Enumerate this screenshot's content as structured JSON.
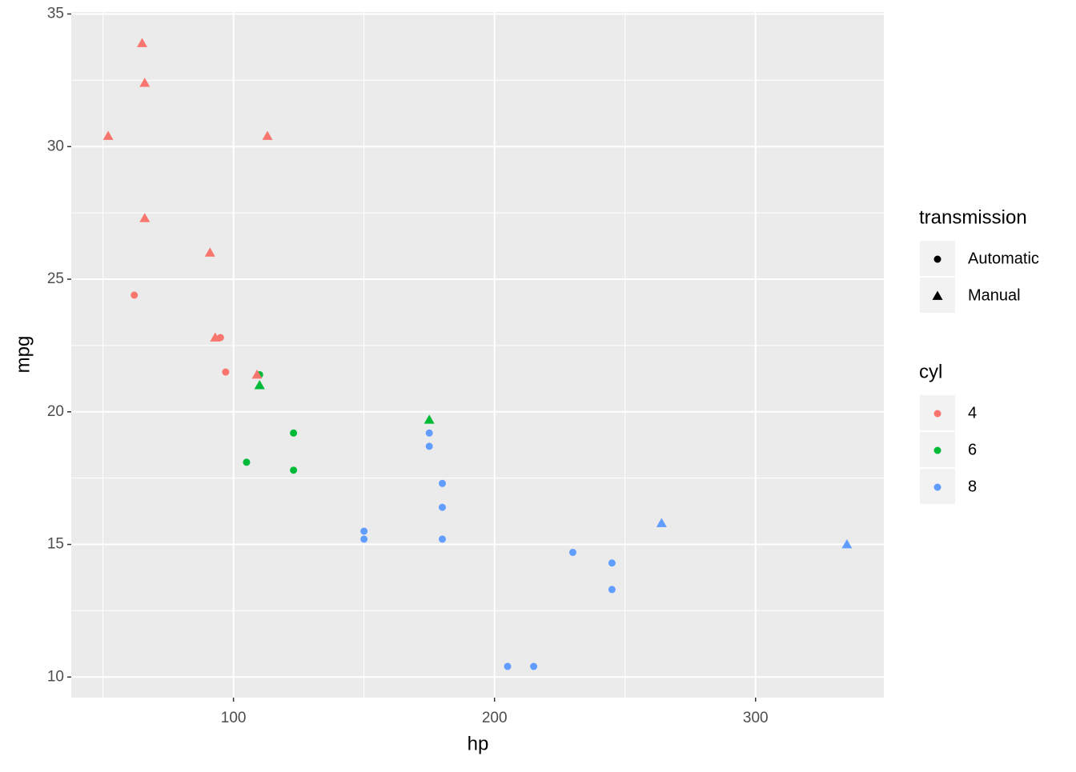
{
  "chart_data": {
    "type": "scatter",
    "x_label": "hp",
    "y_label": "mpg",
    "x": [
      110,
      110,
      93,
      110,
      175,
      105,
      245,
      62,
      95,
      123,
      123,
      180,
      180,
      180,
      205,
      215,
      230,
      66,
      52,
      65,
      97,
      150,
      150,
      245,
      175,
      66,
      91,
      113,
      264,
      175,
      335,
      109
    ],
    "y": [
      21,
      21,
      22.8,
      21.4,
      18.7,
      18.1,
      14.3,
      24.4,
      22.8,
      19.2,
      17.8,
      16.4,
      17.3,
      15.2,
      10.4,
      10.4,
      14.7,
      32.4,
      30.4,
      33.9,
      21.5,
      15.5,
      15.2,
      13.3,
      19.2,
      27.3,
      26,
      30.4,
      15.8,
      19.7,
      15,
      21.4
    ],
    "cyl": [
      "6",
      "6",
      "4",
      "6",
      "8",
      "6",
      "8",
      "4",
      "4",
      "6",
      "6",
      "8",
      "8",
      "8",
      "8",
      "8",
      "8",
      "4",
      "4",
      "4",
      "4",
      "8",
      "8",
      "8",
      "8",
      "4",
      "4",
      "4",
      "8",
      "6",
      "8",
      "4"
    ],
    "transmission": [
      "Manual",
      "Manual",
      "Manual",
      "Automatic",
      "Automatic",
      "Automatic",
      "Automatic",
      "Automatic",
      "Automatic",
      "Automatic",
      "Automatic",
      "Automatic",
      "Automatic",
      "Automatic",
      "Automatic",
      "Automatic",
      "Automatic",
      "Manual",
      "Manual",
      "Manual",
      "Automatic",
      "Automatic",
      "Automatic",
      "Automatic",
      "Automatic",
      "Manual",
      "Manual",
      "Manual",
      "Manual",
      "Manual",
      "Manual",
      "Manual"
    ],
    "shape_legend": {
      "title": "transmission",
      "items": [
        {
          "name": "Automatic",
          "shape": "circle"
        },
        {
          "name": "Manual",
          "shape": "triangle"
        }
      ]
    },
    "color_legend": {
      "title": "cyl",
      "items": [
        {
          "name": "4",
          "color": "#F8766D"
        },
        {
          "name": "6",
          "color": "#00BA38"
        },
        {
          "name": "8",
          "color": "#619CFF"
        }
      ]
    },
    "xlim": [
      37.85,
      349.15
    ],
    "ylim": [
      9.225,
      35.075
    ],
    "xticks": [
      100,
      200,
      300
    ],
    "yticks": [
      10,
      15,
      20,
      25,
      30,
      35
    ],
    "x_minor_grid": [
      50,
      150,
      250
    ],
    "y_minor_grid": [
      12.5,
      17.5,
      22.5,
      27.5,
      32.5
    ],
    "grid": true
  }
}
